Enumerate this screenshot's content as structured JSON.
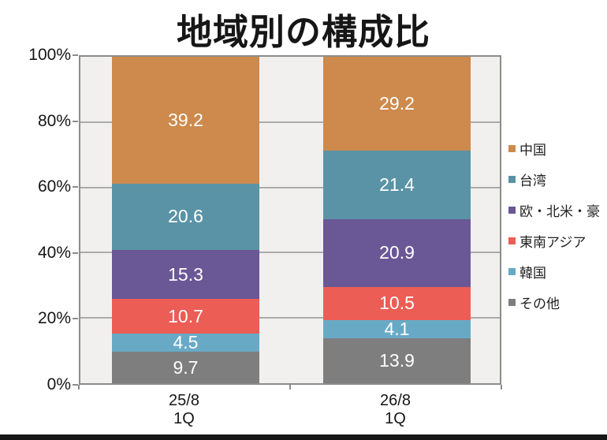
{
  "title": "地域別の構成比",
  "chart_data": {
    "type": "bar",
    "subtype": "stacked-100-percent-column",
    "categories": [
      "25/8 1Q",
      "26/8 1Q"
    ],
    "category_labels": [
      [
        "25/8",
        "1Q"
      ],
      [
        "26/8",
        "1Q"
      ]
    ],
    "series": [
      {
        "name": "中国",
        "color": "#CD8A4C",
        "values": [
          39.2,
          29.2
        ]
      },
      {
        "name": "台湾",
        "color": "#5A93A6",
        "values": [
          20.6,
          21.4
        ]
      },
      {
        "name": "欧・北米・豪",
        "color": "#6A5796",
        "values": [
          15.3,
          20.9
        ]
      },
      {
        "name": "東南アジア",
        "color": "#EC5D55",
        "values": [
          10.7,
          10.5
        ]
      },
      {
        "name": "韓国",
        "color": "#68AAC6",
        "values": [
          4.5,
          4.1
        ]
      },
      {
        "name": "その他",
        "color": "#7E7E7E",
        "values": [
          9.7,
          13.9
        ]
      }
    ],
    "y_ticks": [
      "100%",
      "80%",
      "60%",
      "40%",
      "20%",
      "0%"
    ],
    "ylim": [
      0,
      100
    ],
    "grid": true,
    "legend_position": "right",
    "data_label_color": "#FFFFFF"
  },
  "colors": {
    "plot_background": "#F1F0EE",
    "gridline": "#ABABAB",
    "plot_border": "#8C8C8C",
    "bottom_bar": "#161616",
    "title_text": "#161616"
  }
}
